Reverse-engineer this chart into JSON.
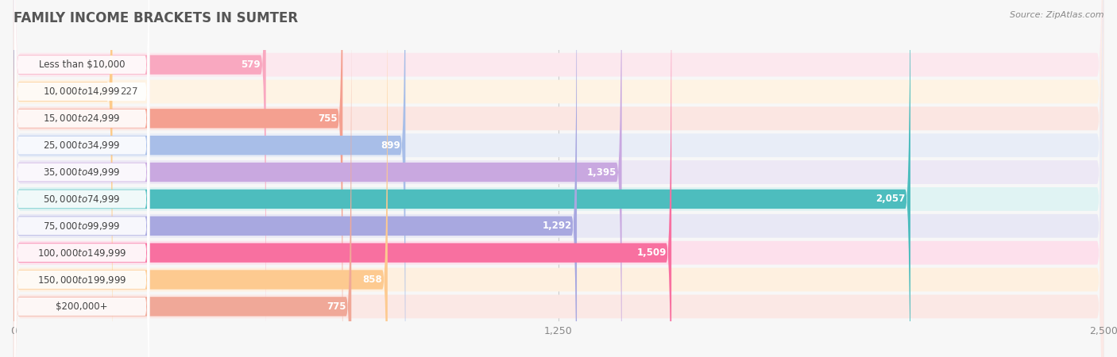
{
  "title": "FAMILY INCOME BRACKETS IN SUMTER",
  "source": "Source: ZipAtlas.com",
  "categories": [
    "Less than $10,000",
    "$10,000 to $14,999",
    "$15,000 to $24,999",
    "$25,000 to $34,999",
    "$35,000 to $49,999",
    "$50,000 to $74,999",
    "$75,000 to $99,999",
    "$100,000 to $149,999",
    "$150,000 to $199,999",
    "$200,000+"
  ],
  "values": [
    579,
    227,
    755,
    899,
    1395,
    2057,
    1292,
    1509,
    858,
    775
  ],
  "bar_colors": [
    "#F9A8C0",
    "#FDCB8A",
    "#F4A090",
    "#A8BEE8",
    "#C9A8E0",
    "#4DBDBE",
    "#A8A8E0",
    "#F870A0",
    "#FDCA90",
    "#F0A898"
  ],
  "bar_bg_colors": [
    "#FCE8EE",
    "#FEF3E4",
    "#FBE6E2",
    "#E8EDF7",
    "#EDE8F5",
    "#E0F3F3",
    "#E8E8F5",
    "#FDE0EC",
    "#FEF0E0",
    "#FBE8E5"
  ],
  "xlim": [
    0,
    2500
  ],
  "xticks": [
    0,
    1250,
    2500
  ],
  "background_color": "#f7f7f7",
  "title_color": "#555555",
  "label_color": "#555555",
  "value_threshold": 500
}
